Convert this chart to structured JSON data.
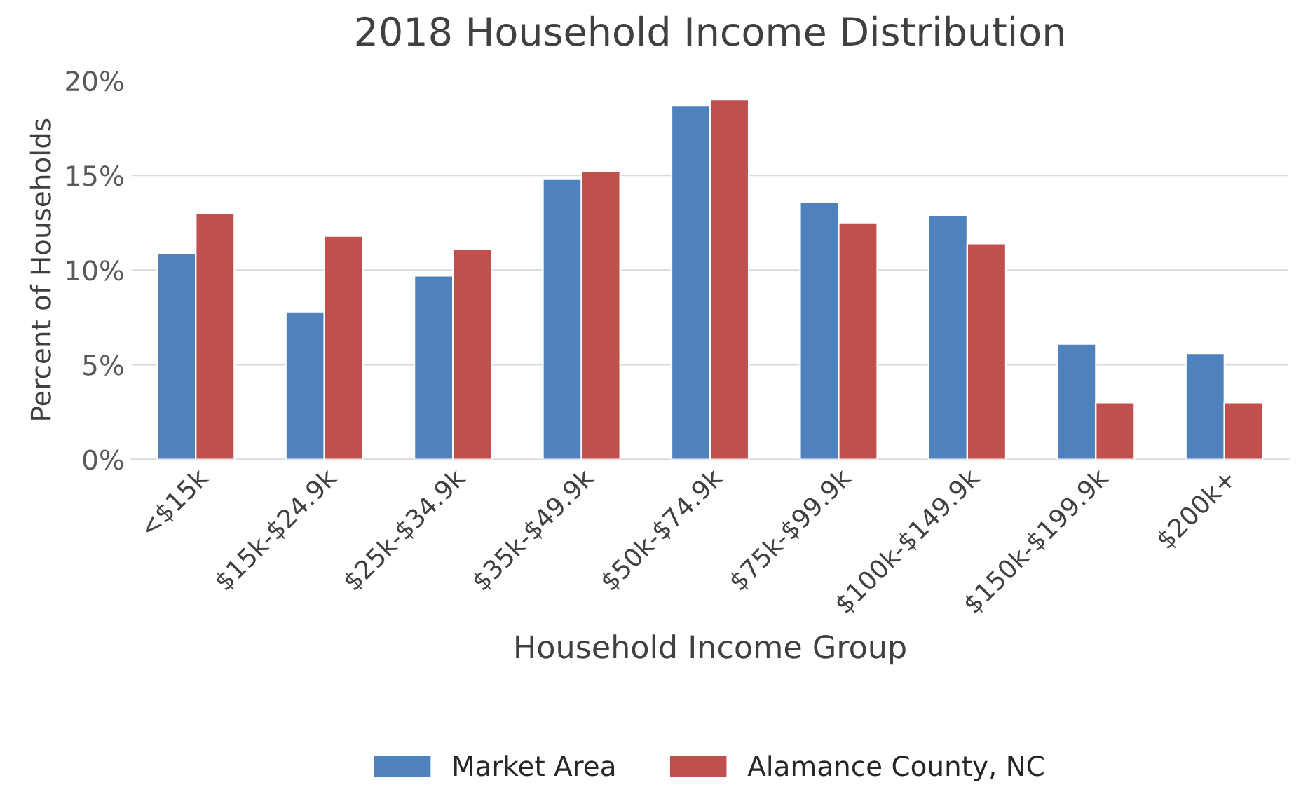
{
  "chart_data": {
    "type": "bar",
    "title": "2018 Household Income Distribution",
    "xlabel": "Household Income Group",
    "ylabel": "Percent of Households",
    "categories": [
      "<$15k",
      "$15k-$24.9k",
      "$25k-$34.9k",
      "$35k-$49.9k",
      "$50k-$74.9k",
      "$75k-$99.9k",
      "$100k-$149.9k",
      "$150k-$199.9k",
      "$200k+"
    ],
    "series": [
      {
        "name": "Market Area",
        "color": "#4f81bd",
        "values": [
          10.9,
          7.8,
          9.7,
          14.8,
          18.7,
          13.6,
          12.9,
          6.1,
          5.6
        ]
      },
      {
        "name": "Alamance County, NC",
        "color": "#c0504d",
        "values": [
          13.0,
          11.8,
          11.1,
          15.2,
          19.0,
          12.5,
          11.4,
          3.0,
          3.0
        ]
      }
    ],
    "ylim": [
      0,
      20
    ],
    "yticks": [
      {
        "value": 0,
        "label": "0%"
      },
      {
        "value": 5,
        "label": "5%"
      },
      {
        "value": 10,
        "label": "10%"
      },
      {
        "value": 15,
        "label": "15%"
      },
      {
        "value": 20,
        "label": "20%"
      }
    ],
    "grid": "y",
    "legend": "bottom"
  }
}
